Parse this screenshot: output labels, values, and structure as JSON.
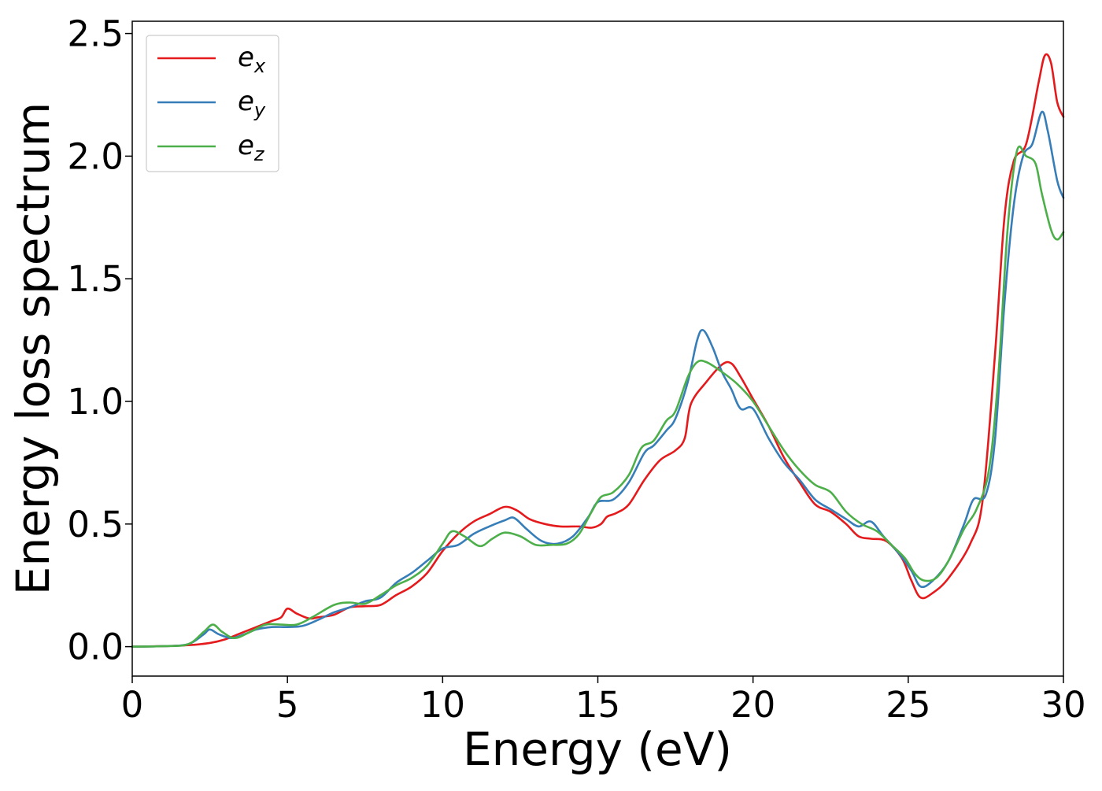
{
  "chart_data": {
    "type": "line",
    "title": "",
    "xlabel": "Energy (eV)",
    "ylabel": "Energy loss spectrum",
    "xlim": [
      0,
      30
    ],
    "ylim": [
      -0.12,
      2.55
    ],
    "xticks": [
      0,
      5,
      10,
      15,
      20,
      25,
      30
    ],
    "xtick_labels": [
      "0",
      "5",
      "10",
      "15",
      "20",
      "25",
      "30"
    ],
    "yticks": [
      0.0,
      0.5,
      1.0,
      1.5,
      2.0,
      2.5
    ],
    "ytick_labels": [
      "0.0",
      "0.5",
      "1.0",
      "1.5",
      "2.0",
      "2.5"
    ],
    "grid": false,
    "legend_position": "top-left",
    "series": [
      {
        "name": "e_x",
        "label_main": "e",
        "label_sub": "x",
        "color": "#e41a1c",
        "points": [
          [
            0,
            0
          ],
          [
            1,
            0.002
          ],
          [
            1.8,
            0.006
          ],
          [
            2.5,
            0.015
          ],
          [
            3,
            0.03
          ],
          [
            3.5,
            0.055
          ],
          [
            4,
            0.08
          ],
          [
            4.5,
            0.105
          ],
          [
            4.8,
            0.12
          ],
          [
            5,
            0.155
          ],
          [
            5.3,
            0.135
          ],
          [
            5.7,
            0.115
          ],
          [
            6,
            0.12
          ],
          [
            6.5,
            0.13
          ],
          [
            7,
            0.16
          ],
          [
            7.5,
            0.165
          ],
          [
            8,
            0.17
          ],
          [
            8.5,
            0.21
          ],
          [
            9,
            0.245
          ],
          [
            9.5,
            0.3
          ],
          [
            10,
            0.39
          ],
          [
            10.5,
            0.46
          ],
          [
            11,
            0.51
          ],
          [
            11.5,
            0.54
          ],
          [
            12,
            0.57
          ],
          [
            12.4,
            0.555
          ],
          [
            12.8,
            0.52
          ],
          [
            13.3,
            0.5
          ],
          [
            13.8,
            0.49
          ],
          [
            14.4,
            0.49
          ],
          [
            14.8,
            0.485
          ],
          [
            15.1,
            0.5
          ],
          [
            15.3,
            0.53
          ],
          [
            15.6,
            0.545
          ],
          [
            16,
            0.58
          ],
          [
            16.5,
            0.68
          ],
          [
            17,
            0.76
          ],
          [
            17.5,
            0.8
          ],
          [
            17.8,
            0.85
          ],
          [
            18,
            0.99
          ],
          [
            18.5,
            1.08
          ],
          [
            19,
            1.15
          ],
          [
            19.3,
            1.155
          ],
          [
            19.6,
            1.1
          ],
          [
            20,
            1.01
          ],
          [
            20.5,
            0.9
          ],
          [
            21,
            0.77
          ],
          [
            21.5,
            0.67
          ],
          [
            22,
            0.58
          ],
          [
            22.5,
            0.55
          ],
          [
            23,
            0.5
          ],
          [
            23.4,
            0.45
          ],
          [
            23.8,
            0.44
          ],
          [
            24.3,
            0.43
          ],
          [
            24.8,
            0.36
          ],
          [
            25.1,
            0.27
          ],
          [
            25.4,
            0.2
          ],
          [
            25.8,
            0.22
          ],
          [
            26.3,
            0.28
          ],
          [
            27,
            0.42
          ],
          [
            27.4,
            0.6
          ],
          [
            27.8,
            1.2
          ],
          [
            28.1,
            1.75
          ],
          [
            28.4,
            1.98
          ],
          [
            28.8,
            2.05
          ],
          [
            29.2,
            2.3
          ],
          [
            29.4,
            2.41
          ],
          [
            29.6,
            2.38
          ],
          [
            29.8,
            2.22
          ],
          [
            30,
            2.16
          ]
        ]
      },
      {
        "name": "e_y",
        "label_main": "e",
        "label_sub": "y",
        "color": "#377eb8",
        "points": [
          [
            0,
            0
          ],
          [
            1,
            0.002
          ],
          [
            1.8,
            0.01
          ],
          [
            2.3,
            0.05
          ],
          [
            2.5,
            0.07
          ],
          [
            2.8,
            0.05
          ],
          [
            3.2,
            0.035
          ],
          [
            3.6,
            0.05
          ],
          [
            4,
            0.07
          ],
          [
            4.5,
            0.08
          ],
          [
            5,
            0.08
          ],
          [
            5.5,
            0.085
          ],
          [
            6,
            0.11
          ],
          [
            6.5,
            0.14
          ],
          [
            7,
            0.16
          ],
          [
            7.5,
            0.185
          ],
          [
            8,
            0.2
          ],
          [
            8.5,
            0.26
          ],
          [
            9,
            0.3
          ],
          [
            9.5,
            0.35
          ],
          [
            10,
            0.4
          ],
          [
            10.5,
            0.415
          ],
          [
            11,
            0.46
          ],
          [
            11.5,
            0.49
          ],
          [
            12,
            0.515
          ],
          [
            12.3,
            0.525
          ],
          [
            12.7,
            0.48
          ],
          [
            13.2,
            0.43
          ],
          [
            13.7,
            0.42
          ],
          [
            14.2,
            0.45
          ],
          [
            14.7,
            0.53
          ],
          [
            15,
            0.59
          ],
          [
            15.5,
            0.6
          ],
          [
            16,
            0.67
          ],
          [
            16.5,
            0.79
          ],
          [
            16.8,
            0.82
          ],
          [
            17.2,
            0.88
          ],
          [
            17.5,
            0.93
          ],
          [
            17.9,
            1.08
          ],
          [
            18.2,
            1.25
          ],
          [
            18.4,
            1.29
          ],
          [
            18.7,
            1.22
          ],
          [
            19,
            1.12
          ],
          [
            19.3,
            1.05
          ],
          [
            19.6,
            0.97
          ],
          [
            20,
            0.97
          ],
          [
            20.5,
            0.85
          ],
          [
            21,
            0.75
          ],
          [
            21.5,
            0.68
          ],
          [
            22,
            0.6
          ],
          [
            22.5,
            0.56
          ],
          [
            23,
            0.52
          ],
          [
            23.4,
            0.49
          ],
          [
            23.8,
            0.51
          ],
          [
            24.2,
            0.45
          ],
          [
            24.7,
            0.38
          ],
          [
            25.1,
            0.31
          ],
          [
            25.4,
            0.245
          ],
          [
            25.8,
            0.27
          ],
          [
            26.3,
            0.35
          ],
          [
            26.8,
            0.5
          ],
          [
            27.1,
            0.6
          ],
          [
            27.5,
            0.62
          ],
          [
            27.8,
            0.85
          ],
          [
            28.1,
            1.4
          ],
          [
            28.4,
            1.8
          ],
          [
            28.7,
            2.0
          ],
          [
            29,
            2.05
          ],
          [
            29.3,
            2.18
          ],
          [
            29.5,
            2.1
          ],
          [
            29.8,
            1.9
          ],
          [
            30,
            1.83
          ]
        ]
      },
      {
        "name": "e_z",
        "label_main": "e",
        "label_sub": "z",
        "color": "#4daf4a",
        "points": [
          [
            0,
            0
          ],
          [
            1,
            0.002
          ],
          [
            1.8,
            0.01
          ],
          [
            2.3,
            0.06
          ],
          [
            2.6,
            0.09
          ],
          [
            2.9,
            0.06
          ],
          [
            3.3,
            0.035
          ],
          [
            3.8,
            0.06
          ],
          [
            4.3,
            0.09
          ],
          [
            4.8,
            0.09
          ],
          [
            5.3,
            0.09
          ],
          [
            5.8,
            0.12
          ],
          [
            6.5,
            0.17
          ],
          [
            7,
            0.18
          ],
          [
            7.5,
            0.175
          ],
          [
            8,
            0.21
          ],
          [
            8.5,
            0.25
          ],
          [
            9,
            0.28
          ],
          [
            9.5,
            0.33
          ],
          [
            10,
            0.42
          ],
          [
            10.3,
            0.47
          ],
          [
            10.7,
            0.45
          ],
          [
            11.2,
            0.41
          ],
          [
            11.6,
            0.44
          ],
          [
            12,
            0.465
          ],
          [
            12.5,
            0.45
          ],
          [
            13,
            0.415
          ],
          [
            13.5,
            0.415
          ],
          [
            14,
            0.42
          ],
          [
            14.4,
            0.46
          ],
          [
            14.8,
            0.55
          ],
          [
            15.1,
            0.61
          ],
          [
            15.5,
            0.63
          ],
          [
            16,
            0.7
          ],
          [
            16.4,
            0.81
          ],
          [
            16.8,
            0.84
          ],
          [
            17.2,
            0.92
          ],
          [
            17.5,
            0.96
          ],
          [
            17.9,
            1.1
          ],
          [
            18.2,
            1.16
          ],
          [
            18.5,
            1.16
          ],
          [
            19,
            1.12
          ],
          [
            19.5,
            1.07
          ],
          [
            20,
            1.0
          ],
          [
            20.5,
            0.9
          ],
          [
            21,
            0.8
          ],
          [
            21.5,
            0.72
          ],
          [
            22,
            0.66
          ],
          [
            22.5,
            0.63
          ],
          [
            23,
            0.55
          ],
          [
            23.5,
            0.5
          ],
          [
            24,
            0.47
          ],
          [
            24.5,
            0.41
          ],
          [
            24.9,
            0.36
          ],
          [
            25.2,
            0.3
          ],
          [
            25.5,
            0.27
          ],
          [
            25.9,
            0.28
          ],
          [
            26.3,
            0.35
          ],
          [
            26.8,
            0.48
          ],
          [
            27.2,
            0.56
          ],
          [
            27.6,
            0.72
          ],
          [
            27.9,
            1.1
          ],
          [
            28.2,
            1.7
          ],
          [
            28.5,
            2.02
          ],
          [
            28.8,
            2.0
          ],
          [
            29.1,
            1.97
          ],
          [
            29.3,
            1.85
          ],
          [
            29.6,
            1.7
          ],
          [
            29.8,
            1.66
          ],
          [
            30,
            1.69
          ]
        ]
      }
    ]
  }
}
